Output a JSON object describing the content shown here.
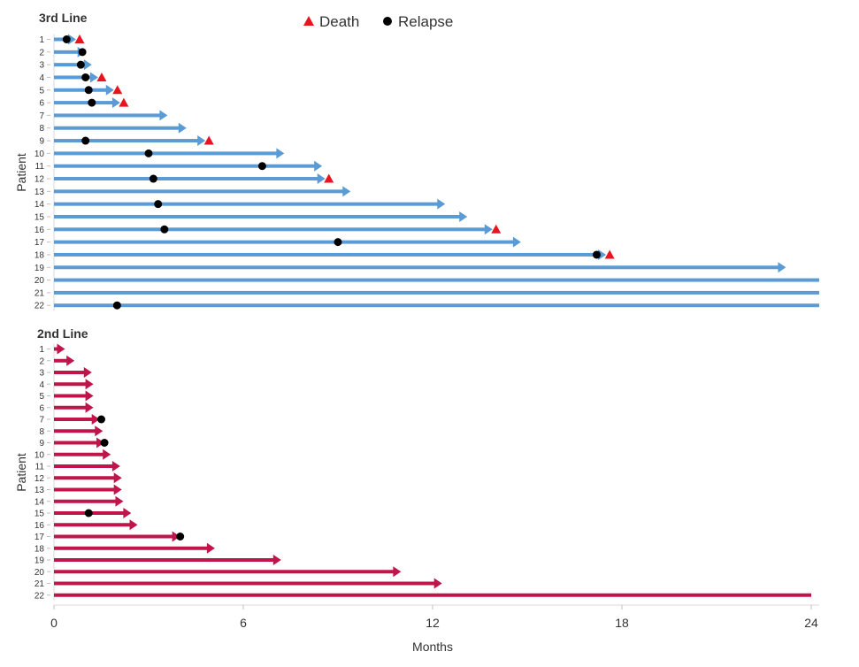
{
  "legend": {
    "death_label": "Death",
    "relapse_label": "Relapse"
  },
  "colors": {
    "third_line": "#5b9bd5",
    "second_line": "#c0154a",
    "death_marker": "#e8141f",
    "relapse_marker": "#000000"
  },
  "chart_data": [
    {
      "type": "swimmer",
      "title": "3rd Line",
      "ylabel": "Patient",
      "xlabel": "",
      "xlim": [
        0,
        24
      ],
      "patients": [
        {
          "id": "1",
          "end": 0.7,
          "ongoing": true,
          "relapse": 0.4,
          "death": 0.7
        },
        {
          "id": "2",
          "end": 1.0,
          "ongoing": true,
          "relapse": 0.9,
          "death": null
        },
        {
          "id": "3",
          "end": 1.2,
          "ongoing": true,
          "relapse": 0.85,
          "death": null
        },
        {
          "id": "4",
          "end": 1.4,
          "ongoing": true,
          "relapse": 1.0,
          "death": 1.4
        },
        {
          "id": "5",
          "end": 1.9,
          "ongoing": true,
          "relapse": 1.1,
          "death": 1.9
        },
        {
          "id": "6",
          "end": 2.1,
          "ongoing": true,
          "relapse": 1.2,
          "death": 2.1
        },
        {
          "id": "7",
          "end": 3.6,
          "ongoing": true,
          "relapse": null,
          "death": null
        },
        {
          "id": "8",
          "end": 4.2,
          "ongoing": true,
          "relapse": null,
          "death": null
        },
        {
          "id": "9",
          "end": 4.8,
          "ongoing": true,
          "relapse": 1.0,
          "death": 4.8
        },
        {
          "id": "10",
          "end": 7.3,
          "ongoing": true,
          "relapse": 3.0,
          "death": null
        },
        {
          "id": "11",
          "end": 8.5,
          "ongoing": true,
          "relapse": 6.6,
          "death": null
        },
        {
          "id": "12",
          "end": 8.6,
          "ongoing": true,
          "relapse": 3.15,
          "death": 8.6
        },
        {
          "id": "13",
          "end": 9.4,
          "ongoing": true,
          "relapse": null,
          "death": null
        },
        {
          "id": "14",
          "end": 12.4,
          "ongoing": true,
          "relapse": 3.3,
          "death": null
        },
        {
          "id": "15",
          "end": 13.1,
          "ongoing": true,
          "relapse": null,
          "death": null
        },
        {
          "id": "16",
          "end": 13.9,
          "ongoing": true,
          "relapse": 3.5,
          "death": 13.9
        },
        {
          "id": "17",
          "end": 14.8,
          "ongoing": true,
          "relapse": 9.0,
          "death": null
        },
        {
          "id": "18",
          "end": 17.5,
          "ongoing": true,
          "relapse": 17.2,
          "death": 17.5
        },
        {
          "id": "19",
          "end": 23.2,
          "ongoing": true,
          "relapse": null,
          "death": null
        },
        {
          "id": "20",
          "end": 24,
          "ongoing": false,
          "relapse": null,
          "death": null
        },
        {
          "id": "21",
          "end": 24,
          "ongoing": false,
          "relapse": null,
          "death": null
        },
        {
          "id": "22",
          "end": 24,
          "ongoing": false,
          "relapse": 2.0,
          "death": null
        }
      ]
    },
    {
      "type": "swimmer",
      "title": "2nd Line",
      "ylabel": "Patient",
      "xlabel": "Months",
      "xlim": [
        0,
        24
      ],
      "xticks": [
        "0",
        "6",
        "12",
        "18",
        "24"
      ],
      "patients": [
        {
          "id": "1",
          "end": 0.35,
          "ongoing": true,
          "relapse": null,
          "death": null
        },
        {
          "id": "2",
          "end": 0.65,
          "ongoing": true,
          "relapse": null,
          "death": null
        },
        {
          "id": "3",
          "end": 1.2,
          "ongoing": true,
          "relapse": null,
          "death": null
        },
        {
          "id": "4",
          "end": 1.25,
          "ongoing": true,
          "relapse": null,
          "death": null
        },
        {
          "id": "5",
          "end": 1.25,
          "ongoing": true,
          "relapse": null,
          "death": null
        },
        {
          "id": "6",
          "end": 1.25,
          "ongoing": true,
          "relapse": null,
          "death": null
        },
        {
          "id": "7",
          "end": 1.45,
          "ongoing": true,
          "relapse": 1.5,
          "death": null
        },
        {
          "id": "8",
          "end": 1.55,
          "ongoing": true,
          "relapse": null,
          "death": null
        },
        {
          "id": "9",
          "end": 1.6,
          "ongoing": true,
          "relapse": 1.6,
          "death": null
        },
        {
          "id": "10",
          "end": 1.8,
          "ongoing": true,
          "relapse": null,
          "death": null
        },
        {
          "id": "11",
          "end": 2.1,
          "ongoing": true,
          "relapse": null,
          "death": null
        },
        {
          "id": "12",
          "end": 2.15,
          "ongoing": true,
          "relapse": null,
          "death": null
        },
        {
          "id": "13",
          "end": 2.15,
          "ongoing": true,
          "relapse": null,
          "death": null
        },
        {
          "id": "14",
          "end": 2.2,
          "ongoing": true,
          "relapse": null,
          "death": null
        },
        {
          "id": "15",
          "end": 2.45,
          "ongoing": true,
          "relapse": 1.1,
          "death": null
        },
        {
          "id": "16",
          "end": 2.65,
          "ongoing": true,
          "relapse": null,
          "death": null
        },
        {
          "id": "17",
          "end": 4.0,
          "ongoing": true,
          "relapse": 4.0,
          "death": null
        },
        {
          "id": "18",
          "end": 5.1,
          "ongoing": true,
          "relapse": null,
          "death": null
        },
        {
          "id": "19",
          "end": 7.2,
          "ongoing": true,
          "relapse": null,
          "death": null
        },
        {
          "id": "20",
          "end": 11.0,
          "ongoing": true,
          "relapse": null,
          "death": null
        },
        {
          "id": "21",
          "end": 12.3,
          "ongoing": true,
          "relapse": null,
          "death": null
        },
        {
          "id": "22",
          "end": 24,
          "ongoing": false,
          "relapse": null,
          "death": null
        }
      ]
    }
  ]
}
